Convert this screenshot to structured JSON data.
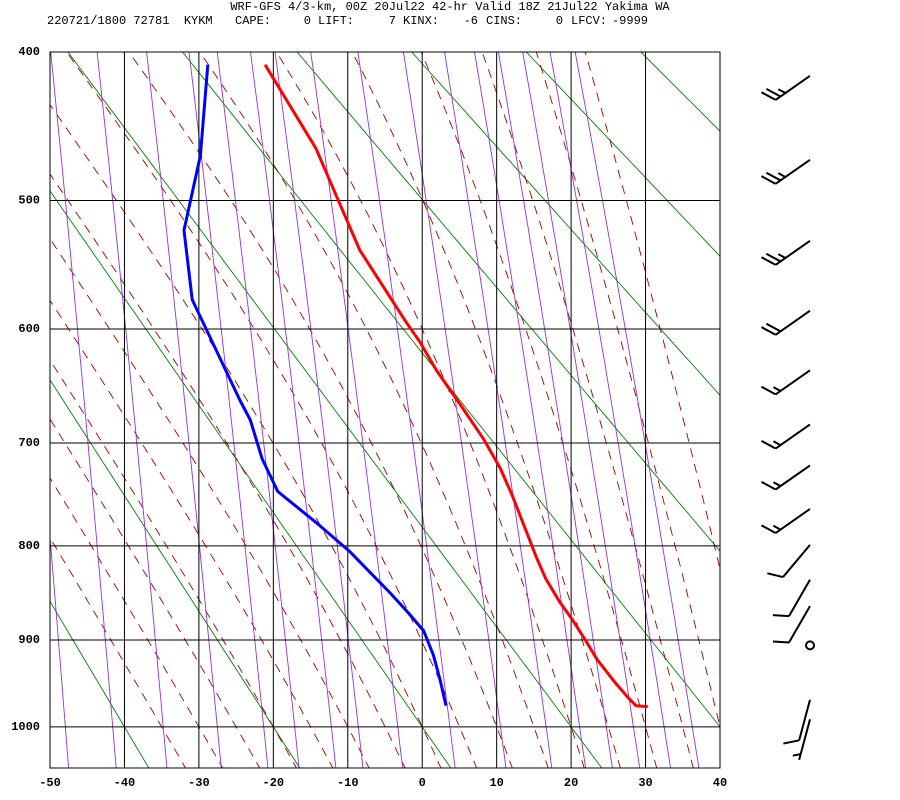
{
  "header": {
    "title": "WRF-GFS 4/3-km, 00Z 20Jul22 42-hr Valid 18Z 21Jul22 Yakima WA",
    "station": "220721/1800 72781  KYKM",
    "indices": [
      {
        "label": "CAPE:",
        "value": 0
      },
      {
        "label": "LIFT:",
        "value": 7
      },
      {
        "label": "KINX:",
        "value": -6
      },
      {
        "label": "CINS:",
        "value": 0
      },
      {
        "label": "LFCV:",
        "value": -9999
      }
    ]
  },
  "chart_data": {
    "type": "skewt",
    "xlim": [
      -50,
      40
    ],
    "xticks": [
      -50,
      -40,
      -30,
      -20,
      -10,
      0,
      10,
      20,
      30,
      40
    ],
    "ylim": [
      400,
      1050
    ],
    "yticks": [
      400,
      500,
      600,
      700,
      800,
      900,
      1000
    ],
    "grid": true,
    "series": [
      {
        "color": "#ff0000",
        "y": [
          976,
          975,
          965,
          947,
          922,
          900,
          877,
          859,
          834,
          811,
          780,
          750,
          724,
          697,
          665,
          635,
          611,
          594,
          537,
          463,
          408
        ],
        "x": [
          30.3,
          28.7,
          27.6,
          25.8,
          23.5,
          21.9,
          20.1,
          18.5,
          16.6,
          15.3,
          13.7,
          12.1,
          10.5,
          8.3,
          5.1,
          1.9,
          -0.3,
          -2.2,
          -8.4,
          -14.3,
          -21.1
        ]
      },
      {
        "color": "#0000ff",
        "y": [
          975,
          945,
          917,
          890,
          870,
          849,
          806,
          778,
          746,
          715,
          679,
          661,
          576,
          522,
          468,
          408
        ],
        "x": [
          3.2,
          2.4,
          1.5,
          0.2,
          -1.9,
          -4.3,
          -9.7,
          -14.0,
          -19.4,
          -21.5,
          -23.1,
          -24.5,
          -30.9,
          -32.0,
          -29.8,
          -28.8
        ]
      }
    ],
    "wind": {
      "pressure": [
        415,
        471,
        530,
        585,
        635,
        683,
        721,
        763,
        799,
        835,
        863,
        906,
        968,
        991
      ],
      "direction": [
        235,
        235,
        235,
        235,
        235,
        235,
        235,
        235,
        220,
        210,
        210,
        0,
        195,
        195
      ],
      "speed": [
        25,
        25,
        25,
        20,
        15,
        15,
        15,
        15,
        10,
        10,
        10,
        0,
        10,
        5
      ]
    }
  }
}
